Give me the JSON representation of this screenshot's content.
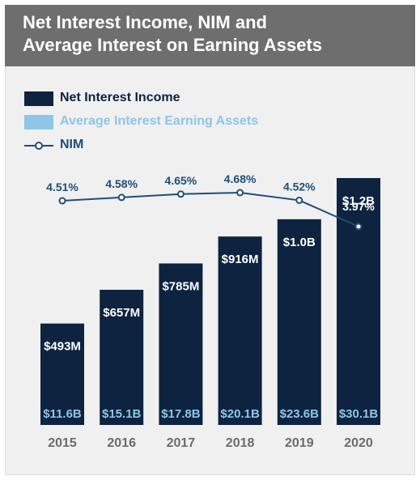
{
  "chart_data": {
    "type": "bar",
    "title_lines": [
      "Net Interest Income, NIM and",
      "Average Interest on Earning Assets"
    ],
    "categories": [
      "2015",
      "2016",
      "2017",
      "2018",
      "2019",
      "2020"
    ],
    "series": [
      {
        "name": "Net Interest Income",
        "type": "bar",
        "values": [
          493,
          657,
          785,
          916,
          1000,
          1200
        ],
        "labels": [
          "$493M",
          "$657M",
          "$785M",
          "$916M",
          "$1.0B",
          "$1.2B"
        ],
        "color": "#0d2340"
      },
      {
        "name": "Average Interest Earning Assets",
        "type": "label",
        "values": [
          11.6,
          15.1,
          17.8,
          20.1,
          23.6,
          30.1
        ],
        "labels": [
          "$11.6B",
          "$15.1B",
          "$17.8B",
          "$20.1B",
          "$23.6B",
          "$30.1B"
        ],
        "color": "#8ec5e8"
      },
      {
        "name": "NIM",
        "type": "line",
        "values": [
          4.51,
          4.58,
          4.65,
          4.68,
          4.52,
          3.97
        ],
        "labels": [
          "4.51%",
          "4.58%",
          "4.65%",
          "4.68%",
          "4.52%",
          "3.97%"
        ],
        "color": "#1d4e7a"
      }
    ],
    "legend_position": "top-left",
    "grid": false
  },
  "colors": {
    "header_bg": "#6e6e6e",
    "panel_bg": "#f0f0f0",
    "bar": "#0d2340",
    "assets": "#8ec5e8",
    "nim": "#1d4e7a",
    "year_label": "#6b6b6b"
  }
}
